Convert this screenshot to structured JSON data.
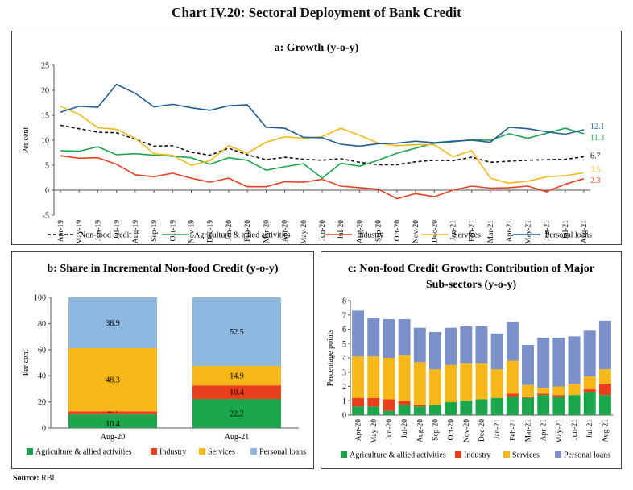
{
  "title": "Chart IV.20: Sectoral Deployment of Bank Credit",
  "source": {
    "label": "Source:",
    "text": "RBI."
  },
  "colors": {
    "nonfood": "#111111",
    "agri": "#1aa64a",
    "industry": "#e8401c",
    "services": "#f5b818",
    "personal": "#1f5e9a",
    "personal_light": "#8fb8e0",
    "personal_c": "#7b8fc8"
  },
  "chart_data": [
    {
      "type": "line",
      "title": "a: Growth (y-o-y)",
      "ylabel": "Per cent",
      "ylim": [
        -5,
        25
      ],
      "yticks": [
        -5,
        0,
        5,
        10,
        15,
        20,
        25
      ],
      "grid": false,
      "x": [
        "Apr-19",
        "May-19",
        "Jun-19",
        "Jul-19",
        "Aug-19",
        "Sep-19",
        "Oct-19",
        "Nov-19",
        "Dec-19",
        "Jan-20",
        "Feb-20",
        "Mar-20",
        "Apr-20",
        "May-20",
        "Jun-20",
        "Jul-20",
        "Aug-20",
        "Sep-20",
        "Oct-20",
        "Nov-20",
        "Dec-20",
        "Jan-21",
        "Feb-21",
        "Mar-21",
        "Apr-21",
        "May-21",
        "Jun-21",
        "Jul-21",
        "Aug-21"
      ],
      "series": [
        {
          "name": "Non-food credit",
          "color_key": "nonfood",
          "dash": true,
          "end_label": "6.7",
          "values": [
            13.0,
            12.3,
            11.6,
            11.5,
            10.2,
            8.8,
            8.9,
            7.6,
            7.0,
            8.4,
            7.1,
            6.1,
            6.6,
            6.2,
            6.0,
            6.3,
            5.6,
            5.1,
            5.1,
            5.7,
            6.0,
            5.9,
            6.6,
            5.6,
            5.8,
            6.0,
            6.1,
            6.2,
            6.7
          ]
        },
        {
          "name": "Agriculture & allied activities",
          "color_key": "agri",
          "end_label": "11.3",
          "values": [
            7.9,
            7.8,
            8.7,
            7.1,
            7.3,
            7.0,
            6.8,
            6.5,
            5.2,
            6.5,
            6.0,
            4.0,
            4.7,
            5.3,
            2.4,
            5.4,
            4.8,
            6.0,
            7.4,
            8.4,
            9.4,
            9.7,
            10.1,
            10.0,
            11.3,
            10.4,
            11.4,
            12.4,
            11.3
          ]
        },
        {
          "name": "Industry",
          "color_key": "industry",
          "end_label": "2.3",
          "values": [
            6.9,
            6.4,
            6.5,
            5.2,
            3.1,
            2.7,
            3.4,
            2.4,
            1.6,
            2.4,
            0.7,
            0.7,
            1.7,
            1.6,
            2.2,
            0.8,
            0.5,
            0.2,
            -1.7,
            -0.7,
            -1.3,
            0.0,
            0.8,
            0.4,
            0.5,
            0.8,
            -0.3,
            1.2,
            2.3
          ]
        },
        {
          "name": "Services",
          "color_key": "services",
          "end_label": "3.5",
          "values": [
            16.8,
            15.2,
            12.5,
            12.2,
            10.4,
            7.3,
            7.0,
            5.0,
            5.9,
            8.9,
            7.4,
            9.6,
            10.7,
            10.4,
            10.7,
            12.4,
            11.0,
            9.4,
            8.9,
            9.1,
            9.1,
            6.7,
            7.9,
            2.4,
            1.4,
            1.8,
            2.7,
            2.9,
            3.5
          ]
        },
        {
          "name": "Personal loans",
          "color_key": "personal",
          "end_label": "12.1",
          "values": [
            15.6,
            16.8,
            16.6,
            21.2,
            19.4,
            16.7,
            17.2,
            16.5,
            16.0,
            16.9,
            17.1,
            12.6,
            12.4,
            10.6,
            10.5,
            9.2,
            8.8,
            9.3,
            9.4,
            9.8,
            9.5,
            9.8,
            10.0,
            9.6,
            12.6,
            12.3,
            11.7,
            11.2,
            12.1
          ]
        }
      ]
    },
    {
      "type": "bar",
      "stacked": true,
      "title": "b: Share in Incremental Non-food Credit (y-o-y)",
      "ylabel": "Per cent",
      "ylim": [
        0,
        100
      ],
      "yticks": [
        0,
        20,
        40,
        60,
        80,
        100
      ],
      "categories": [
        "Aug-20",
        "Aug-21"
      ],
      "series": [
        {
          "name": "Agriculture & allied activities",
          "color_key": "agri",
          "values": [
            10.4,
            22.2
          ],
          "labels": [
            "10.4",
            "22.2"
          ]
        },
        {
          "name": "Industry",
          "color_key": "industry",
          "values": [
            2.4,
            10.4
          ],
          "labels": [
            "2.4",
            "10.4"
          ]
        },
        {
          "name": "Services",
          "color_key": "services",
          "values": [
            48.3,
            14.9
          ],
          "labels": [
            "48.3",
            "14.9"
          ]
        },
        {
          "name": "Personal loans",
          "color_key": "personal_light",
          "values": [
            38.9,
            52.5
          ],
          "labels": [
            "38.9",
            "52.5"
          ]
        }
      ]
    },
    {
      "type": "bar",
      "stacked": true,
      "title": "c: Non-food Credit Growth:  Contribution of Major Sub-sectors (y-o-y)",
      "title_lines": [
        "c: Non-food Credit Growth:  Contribution of Major",
        "Sub-sectors (y-o-y)"
      ],
      "ylabel": "Percentage points",
      "ylim": [
        0,
        8
      ],
      "yticks": [
        0,
        1,
        2,
        3,
        4,
        5,
        6,
        7,
        8
      ],
      "categories": [
        "Apr-20",
        "May-20",
        "Jun-20",
        "Jul-20",
        "Aug-20",
        "Sep-20",
        "Oct-20",
        "Nov-20",
        "Dec-20",
        "Jan-21",
        "Feb-21",
        "Mar-21",
        "Apr-21",
        "May-21",
        "Jun-21",
        "Jul-21",
        "Aug-21"
      ],
      "series": [
        {
          "name": "Agriculture & allied activities",
          "color_key": "agri",
          "values": [
            0.6,
            0.6,
            0.3,
            0.7,
            0.6,
            0.7,
            0.9,
            1.0,
            1.1,
            1.2,
            1.3,
            1.2,
            1.4,
            1.3,
            1.4,
            1.6,
            1.4
          ]
        },
        {
          "name": "Industry",
          "color_key": "industry",
          "values": [
            0.6,
            0.6,
            0.8,
            0.3,
            0.1,
            0.0,
            0.0,
            0.0,
            0.0,
            0.0,
            0.2,
            0.1,
            0.1,
            0.1,
            0.0,
            0.2,
            0.8
          ]
        },
        {
          "name": "Services",
          "color_key": "services",
          "values": [
            2.9,
            2.9,
            2.9,
            3.2,
            3.0,
            2.5,
            2.6,
            2.6,
            2.5,
            2.0,
            2.3,
            0.8,
            0.4,
            0.6,
            0.8,
            0.9,
            1.0
          ]
        },
        {
          "name": "Personal loans",
          "color_key": "personal_c",
          "values": [
            3.2,
            2.7,
            2.7,
            2.5,
            2.4,
            2.6,
            2.6,
            2.6,
            2.6,
            2.5,
            2.7,
            2.8,
            3.5,
            3.4,
            3.3,
            3.2,
            3.4
          ]
        }
      ]
    }
  ]
}
